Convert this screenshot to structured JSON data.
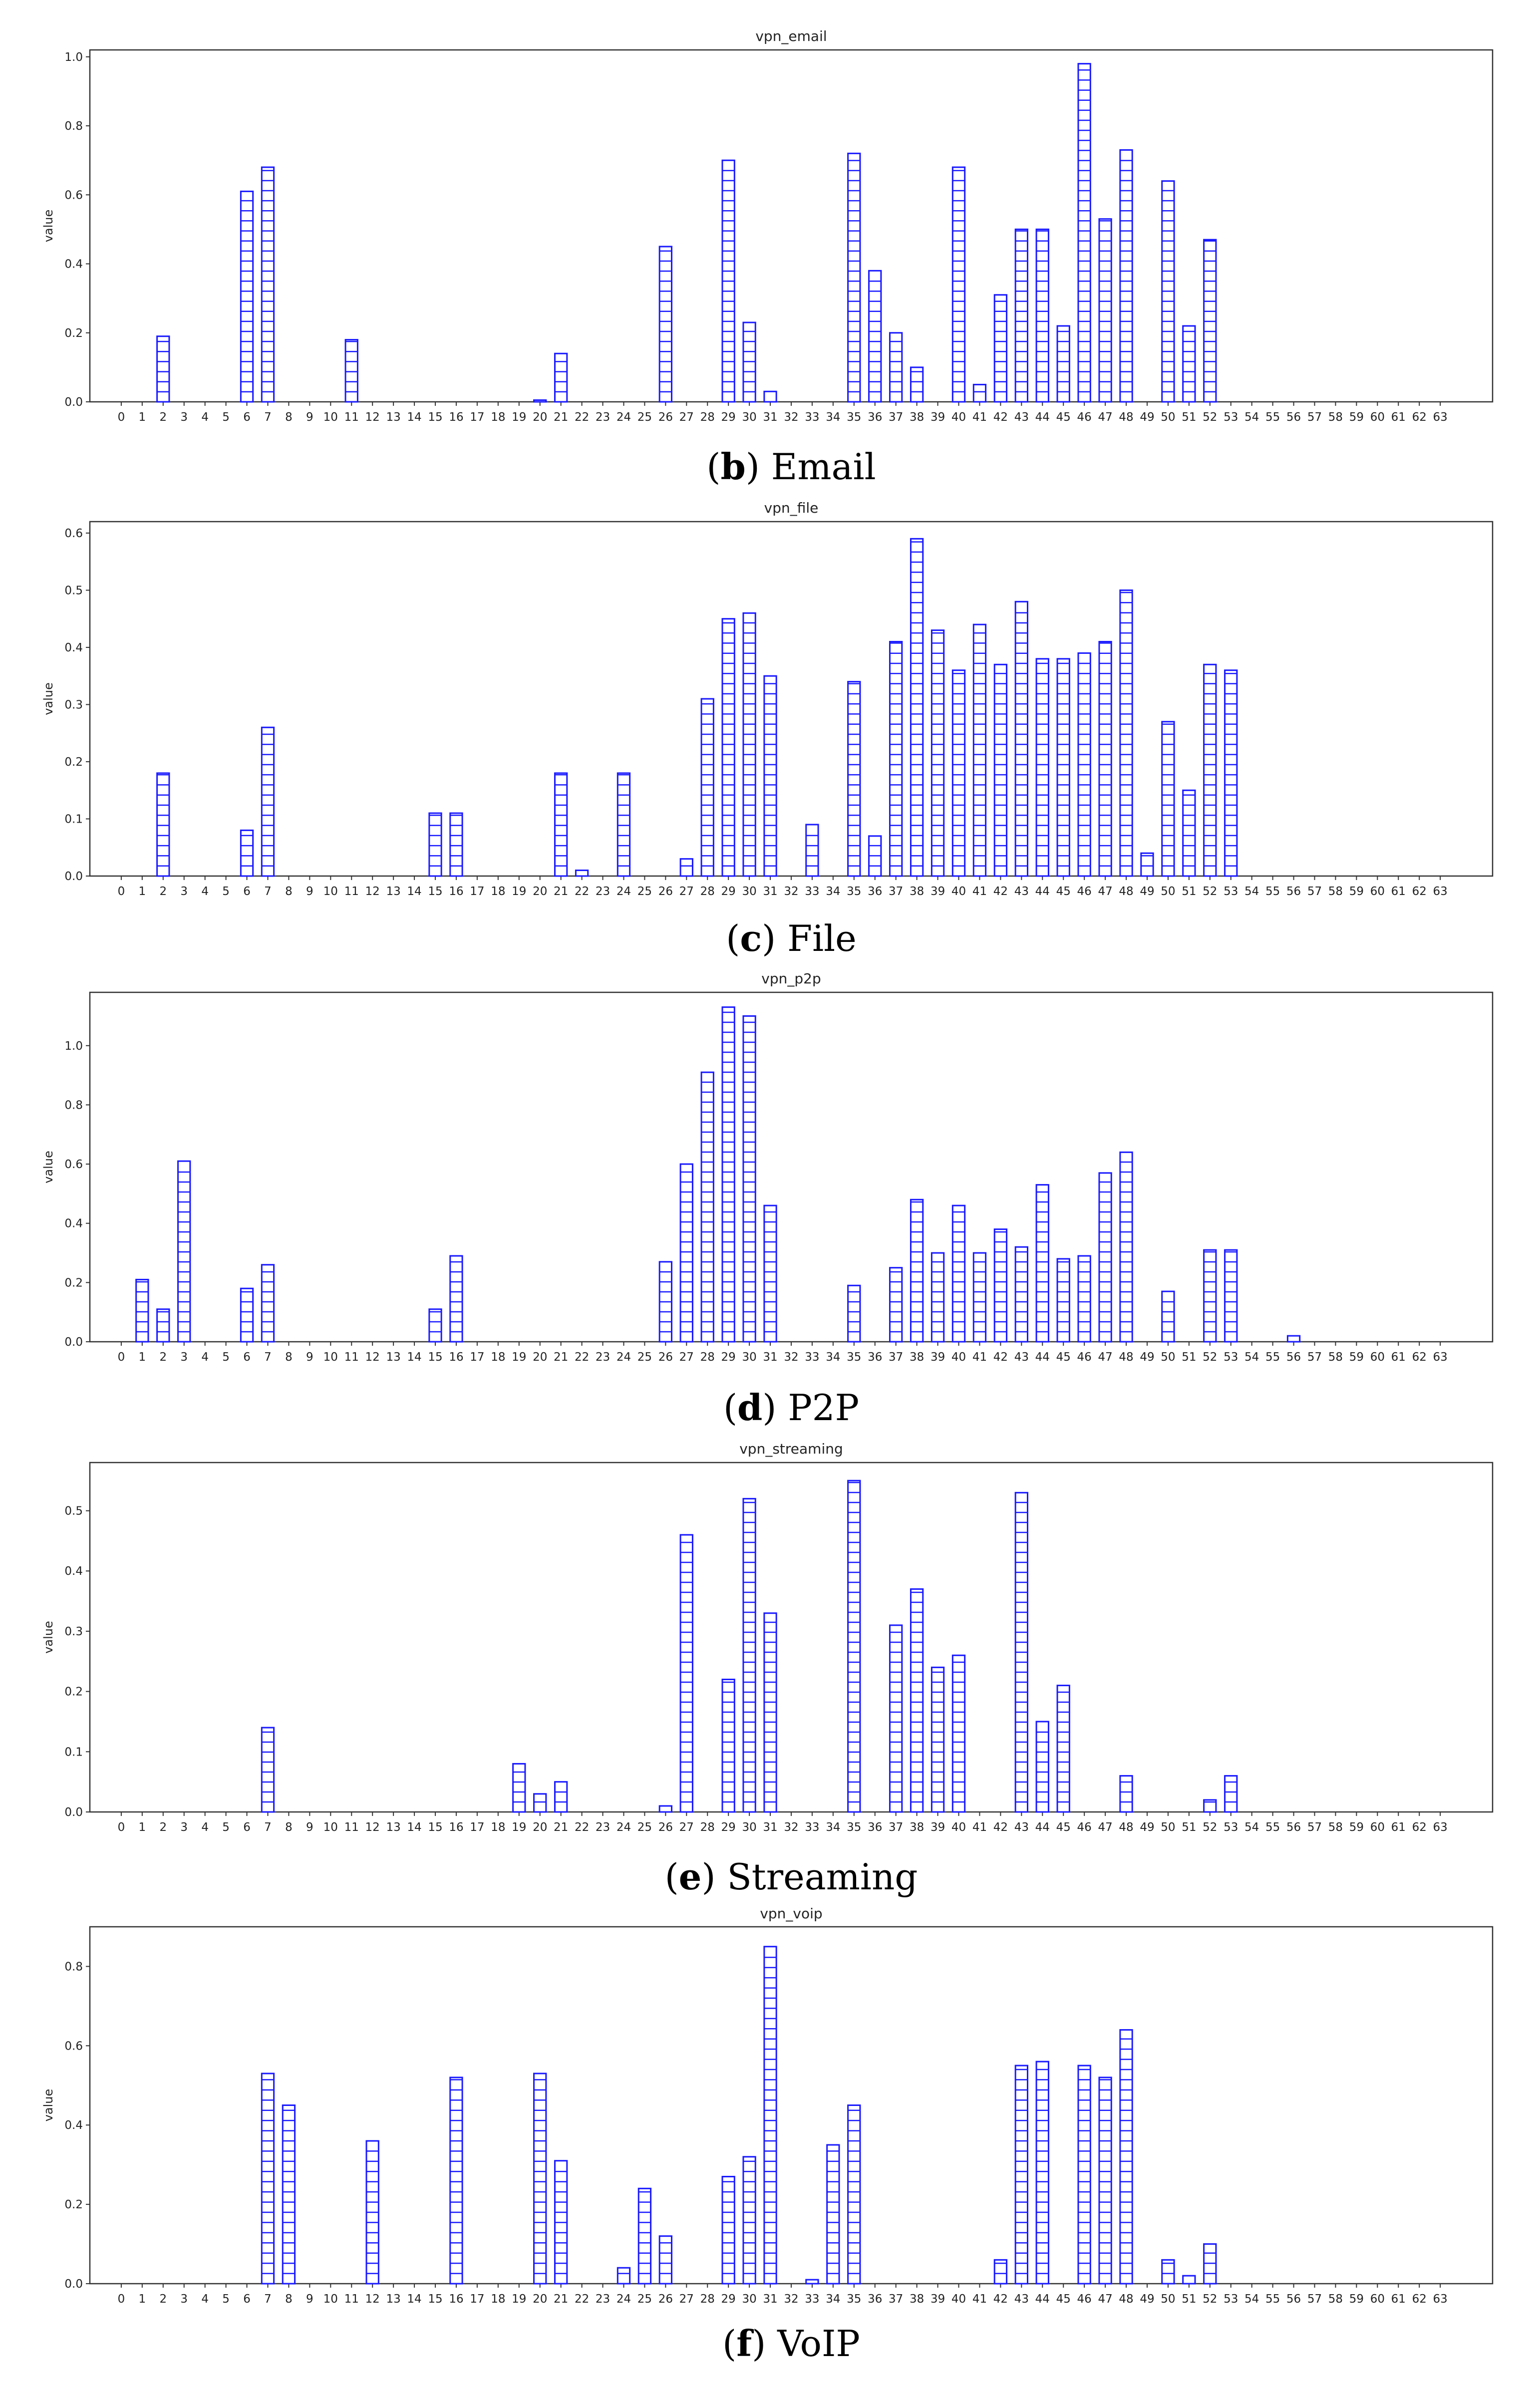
{
  "colors": {
    "bar_edge": "#1a1aff",
    "frame": "#333333",
    "text": "#222222"
  },
  "chart_data": [
    {
      "type": "bar",
      "title": "vpn_email",
      "ylabel": "value",
      "xlabel": "",
      "ylim": [
        0,
        1.02
      ],
      "yticks": [
        "0.0",
        "0.2",
        "0.4",
        "0.6",
        "0.8",
        "1.0"
      ],
      "ytick_values": [
        0,
        0.2,
        0.4,
        0.6,
        0.8,
        1.0
      ],
      "caption_letter": "b",
      "caption_text": "Email",
      "values": [
        0,
        0,
        0.19,
        0,
        0,
        0,
        0.61,
        0.68,
        0,
        0,
        0,
        0.18,
        0,
        0,
        0,
        0,
        0,
        0,
        0,
        0,
        0.005,
        0.14,
        0,
        0,
        0,
        0,
        0.45,
        0,
        0,
        0.7,
        0.23,
        0.03,
        0,
        0,
        0,
        0.72,
        0.38,
        0.2,
        0.1,
        0,
        0.68,
        0.05,
        0.31,
        0.5,
        0.5,
        0.22,
        0.98,
        0.53,
        0.73,
        0,
        0.64,
        0.22,
        0.47,
        0,
        0,
        0,
        0,
        0,
        0,
        0,
        0,
        0,
        0,
        0
      ]
    },
    {
      "type": "bar",
      "title": "vpn_file",
      "ylabel": "value",
      "xlabel": "",
      "ylim": [
        0,
        0.62
      ],
      "yticks": [
        "0.0",
        "0.1",
        "0.2",
        "0.3",
        "0.4",
        "0.5",
        "0.6"
      ],
      "ytick_values": [
        0,
        0.1,
        0.2,
        0.3,
        0.4,
        0.5,
        0.6
      ],
      "caption_letter": "c",
      "caption_text": "File",
      "values": [
        0,
        0,
        0.18,
        0,
        0,
        0,
        0.08,
        0.26,
        0,
        0,
        0,
        0,
        0,
        0,
        0,
        0.11,
        0.11,
        0,
        0,
        0,
        0,
        0.18,
        0.01,
        0,
        0.18,
        0,
        0,
        0.03,
        0.31,
        0.45,
        0.46,
        0.35,
        0,
        0.09,
        0,
        0.34,
        0.07,
        0.41,
        0.59,
        0.43,
        0.36,
        0.44,
        0.37,
        0.48,
        0.38,
        0.38,
        0.39,
        0.41,
        0.5,
        0.04,
        0.27,
        0.15,
        0.37,
        0.36,
        0,
        0,
        0,
        0,
        0,
        0,
        0,
        0,
        0,
        0
      ]
    },
    {
      "type": "bar",
      "title": "vpn_p2p",
      "ylabel": "value",
      "xlabel": "",
      "ylim": [
        0,
        1.18
      ],
      "yticks": [
        "0.0",
        "0.2",
        "0.4",
        "0.6",
        "0.8",
        "1.0"
      ],
      "ytick_values": [
        0,
        0.2,
        0.4,
        0.6,
        0.8,
        1.0
      ],
      "caption_letter": "d",
      "caption_text": "P2P",
      "values": [
        0,
        0.21,
        0.11,
        0.61,
        0,
        0,
        0.18,
        0.26,
        0,
        0,
        0,
        0,
        0,
        0,
        0,
        0.11,
        0.29,
        0,
        0,
        0,
        0,
        0,
        0,
        0,
        0,
        0,
        0.27,
        0.6,
        0.91,
        1.13,
        1.1,
        0.46,
        0,
        0,
        0,
        0.19,
        0,
        0.25,
        0.48,
        0.3,
        0.46,
        0.3,
        0.38,
        0.32,
        0.53,
        0.28,
        0.29,
        0.57,
        0.64,
        0,
        0.17,
        0,
        0.31,
        0.31,
        0,
        0,
        0.02,
        0,
        0,
        0,
        0,
        0,
        0,
        0
      ]
    },
    {
      "type": "bar",
      "title": "vpn_streaming",
      "ylabel": "value",
      "xlabel": "",
      "ylim": [
        0,
        0.58
      ],
      "yticks": [
        "0.0",
        "0.1",
        "0.2",
        "0.3",
        "0.4",
        "0.5"
      ],
      "ytick_values": [
        0,
        0.1,
        0.2,
        0.3,
        0.4,
        0.5
      ],
      "caption_letter": "e",
      "caption_text": "Streaming",
      "values": [
        0,
        0,
        0,
        0,
        0,
        0,
        0,
        0.14,
        0,
        0,
        0,
        0,
        0,
        0,
        0,
        0,
        0,
        0,
        0,
        0.08,
        0.03,
        0.05,
        0,
        0,
        0,
        0,
        0.01,
        0.46,
        0,
        0.22,
        0.52,
        0.33,
        0,
        0,
        0,
        0.55,
        0,
        0.31,
        0.37,
        0.24,
        0.26,
        0,
        0,
        0.53,
        0.15,
        0.21,
        0,
        0,
        0.06,
        0,
        0,
        0,
        0.02,
        0.06,
        0,
        0,
        0,
        0,
        0,
        0,
        0,
        0,
        0,
        0
      ]
    },
    {
      "type": "bar",
      "title": "vpn_voip",
      "ylabel": "value",
      "xlabel": "",
      "ylim": [
        0,
        0.9
      ],
      "yticks": [
        "0.0",
        "0.2",
        "0.4",
        "0.6",
        "0.8"
      ],
      "ytick_values": [
        0,
        0.2,
        0.4,
        0.6,
        0.8
      ],
      "caption_letter": "f",
      "caption_text": "VoIP",
      "values": [
        0,
        0,
        0,
        0,
        0,
        0,
        0,
        0.53,
        0.45,
        0,
        0,
        0,
        0.36,
        0,
        0,
        0,
        0.52,
        0,
        0,
        0,
        0.53,
        0.31,
        0,
        0,
        0.04,
        0.24,
        0.12,
        0,
        0,
        0.27,
        0.32,
        0.85,
        0,
        0.01,
        0.35,
        0.45,
        0,
        0,
        0,
        0,
        0,
        0,
        0.06,
        0.55,
        0.56,
        0,
        0.55,
        0.52,
        0.64,
        0,
        0.06,
        0.02,
        0.1,
        0,
        0,
        0,
        0,
        0,
        0,
        0,
        0,
        0,
        0,
        0
      ]
    }
  ]
}
